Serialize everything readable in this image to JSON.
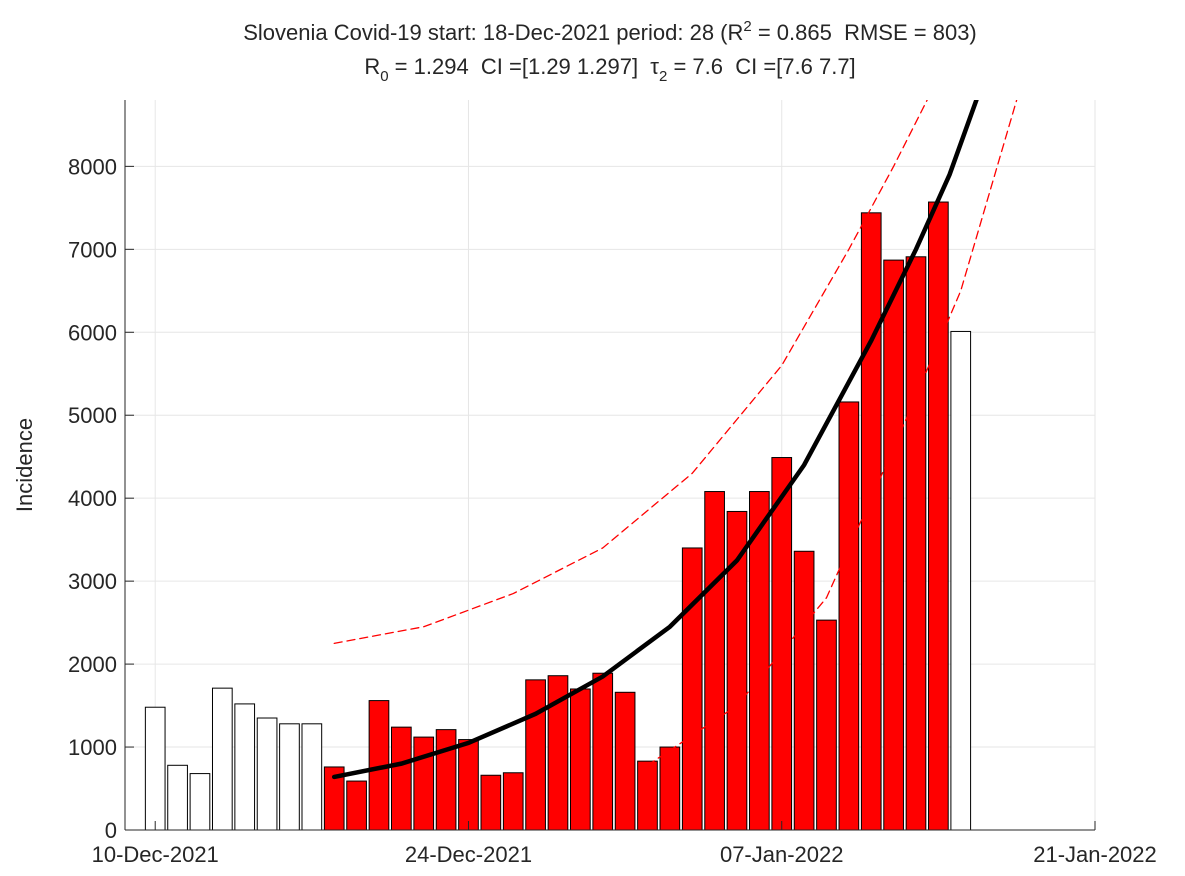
{
  "chart_data": {
    "type": "bar",
    "title": [
      "Slovenia Covid-19 start: 18-Dec-2021 period: 28 (R",
      "2",
      " = 0.865  RMSE = 803)"
    ],
    "subtitle": [
      "R",
      "0",
      " = 1.294  CI =[1.29 1.297]  τ",
      "2",
      " = 7.6  CI =[7.6 7.7]"
    ],
    "ylabel": "Incidence",
    "xlim": [
      -1.35,
      42
    ],
    "xticks": [
      {
        "value": 0,
        "label": "10-Dec-2021"
      },
      {
        "value": 14,
        "label": "24-Dec-2021"
      },
      {
        "value": 28,
        "label": "07-Jan-2022"
      },
      {
        "value": 42,
        "label": "21-Jan-2022"
      }
    ],
    "ylim": [
      0,
      8800
    ],
    "yticks": [
      0,
      1000,
      2000,
      3000,
      4000,
      5000,
      6000,
      7000,
      8000
    ],
    "grid": true,
    "series": [
      {
        "color": "#ffffff",
        "x": [
          0,
          1,
          2,
          3,
          4,
          5,
          6,
          7,
          36
        ],
        "values": [
          1480,
          780,
          680,
          1710,
          1520,
          1350,
          1280,
          1280,
          6010
        ]
      },
      {
        "color": "#ff0000",
        "x": [
          8,
          9,
          10,
          11,
          12,
          13,
          14,
          15,
          16,
          17,
          18,
          19,
          20,
          21,
          22,
          23,
          24,
          25,
          26,
          27,
          28,
          29,
          30,
          31,
          32,
          33,
          34,
          35
        ],
        "values": [
          760,
          590,
          1560,
          1240,
          1120,
          1210,
          1090,
          660,
          690,
          1810,
          1860,
          1700,
          1890,
          1660,
          830,
          1000,
          3400,
          4080,
          3840,
          4080,
          4490,
          3360,
          2530,
          5160,
          7440,
          6870,
          6910,
          7570
        ]
      }
    ],
    "lines": [
      {
        "type": "line",
        "color": "#000000",
        "dash": false,
        "x": [
          8,
          11,
          14,
          17,
          20,
          23,
          26,
          29,
          32,
          34,
          35.5,
          36.7
        ],
        "values": [
          640,
          800,
          1050,
          1400,
          1850,
          2450,
          3250,
          4400,
          5900,
          7000,
          7900,
          8800
        ]
      },
      {
        "type": "line",
        "color": "#ff0000",
        "dash": true,
        "x": [
          8,
          12,
          16,
          20,
          24,
          28,
          31,
          33,
          34.5
        ],
        "values": [
          2250,
          2450,
          2850,
          3400,
          4300,
          5600,
          7000,
          8000,
          8800
        ]
      },
      {
        "type": "line",
        "color": "#ff0000",
        "dash": true,
        "x": [
          22,
          26,
          30,
          33,
          36,
          38.5
        ],
        "values": [
          780,
          1500,
          2800,
          4600,
          6500,
          8800
        ]
      }
    ]
  }
}
